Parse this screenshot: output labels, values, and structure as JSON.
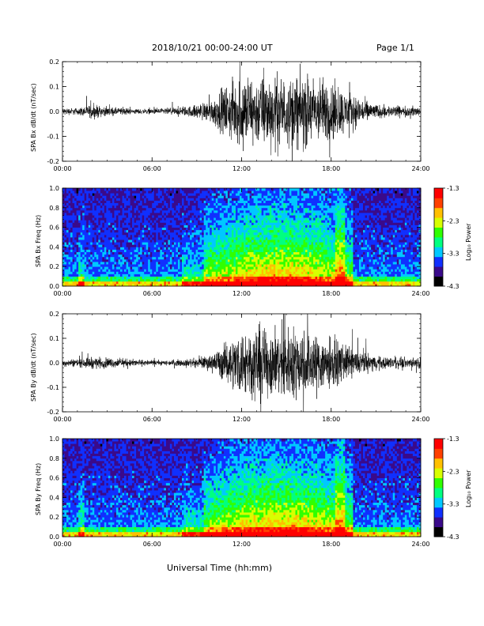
{
  "header": {
    "date_range": "2018/10/21  00:00-24:00 UT",
    "page": "Page 1/1"
  },
  "footer": {
    "xlabel": "Universal Time (hh:mm)"
  },
  "colorbar": {
    "ticks": [
      "-1.3",
      "-2.3",
      "-3.3",
      "-4.3"
    ],
    "label": "Log₁₀ Power",
    "colors": [
      "#000000",
      "#3a0a8a",
      "#1030ff",
      "#00c8ff",
      "#00ff80",
      "#30ff00",
      "#d8ff00",
      "#ffc000",
      "#ff4000",
      "#ff0000"
    ]
  },
  "chart_data": [
    {
      "type": "line",
      "ylabel": "SPA Bx dB/dt (nT/sec)",
      "ylim": [
        -0.2,
        0.2
      ],
      "yticks": [
        "0.2",
        "0.1",
        "0.0",
        "-0.1",
        "-0.2"
      ],
      "xticks": [
        "00:00",
        "06:00",
        "12:00",
        "18:00",
        "24:00"
      ],
      "xlim_hours": [
        0,
        24
      ],
      "envelope": {
        "hours": [
          0,
          1,
          2,
          3,
          4,
          5,
          6,
          7,
          8,
          9,
          10,
          11,
          12,
          13,
          14,
          15,
          16,
          17,
          18,
          19,
          20,
          21,
          22,
          23,
          24
        ],
        "amplitude": [
          0.02,
          0.02,
          0.04,
          0.025,
          0.02,
          0.015,
          0.015,
          0.02,
          0.025,
          0.04,
          0.07,
          0.15,
          0.22,
          0.2,
          0.22,
          0.2,
          0.22,
          0.2,
          0.18,
          0.12,
          0.08,
          0.04,
          0.035,
          0.03,
          0.03
        ]
      }
    },
    {
      "type": "heatmap",
      "ylabel": "SPA Bx Freq (Hz)",
      "ylim": [
        0.0,
        1.0
      ],
      "yticks": [
        "1.0",
        "0.8",
        "0.6",
        "0.4",
        "0.2",
        "0.0"
      ],
      "xticks": [
        "00:00",
        "06:00",
        "12:00",
        "18:00",
        "24:00"
      ],
      "xlim_hours": [
        0,
        24
      ],
      "color_range": [
        -4.3,
        -1.3
      ]
    },
    {
      "type": "line",
      "ylabel": "SPA By dB/dt (nT/sec)",
      "ylim": [
        -0.2,
        0.2
      ],
      "yticks": [
        "0.2",
        "0.1",
        "0.0",
        "-0.1",
        "-0.2"
      ],
      "xticks": [
        "00:00",
        "06:00",
        "12:00",
        "18:00",
        "24:00"
      ],
      "xlim_hours": [
        0,
        24
      ],
      "envelope": {
        "hours": [
          0,
          1,
          2,
          3,
          4,
          5,
          6,
          7,
          8,
          9,
          10,
          11,
          12,
          13,
          14,
          15,
          16,
          17,
          18,
          19,
          20,
          21,
          22,
          23,
          24
        ],
        "amplitude": [
          0.02,
          0.025,
          0.035,
          0.03,
          0.025,
          0.02,
          0.015,
          0.015,
          0.02,
          0.025,
          0.05,
          0.12,
          0.2,
          0.22,
          0.2,
          0.22,
          0.21,
          0.18,
          0.15,
          0.1,
          0.07,
          0.04,
          0.035,
          0.03,
          0.03
        ]
      }
    },
    {
      "type": "heatmap",
      "ylabel": "SPA By Freq (Hz)",
      "ylim": [
        0.0,
        1.0
      ],
      "yticks": [
        "1.0",
        "0.8",
        "0.6",
        "0.4",
        "0.2",
        "0.0"
      ],
      "xticks": [
        "00:00",
        "06:00",
        "12:00",
        "18:00",
        "24:00"
      ],
      "xlim_hours": [
        0,
        24
      ],
      "color_range": [
        -4.3,
        -1.3
      ]
    }
  ]
}
